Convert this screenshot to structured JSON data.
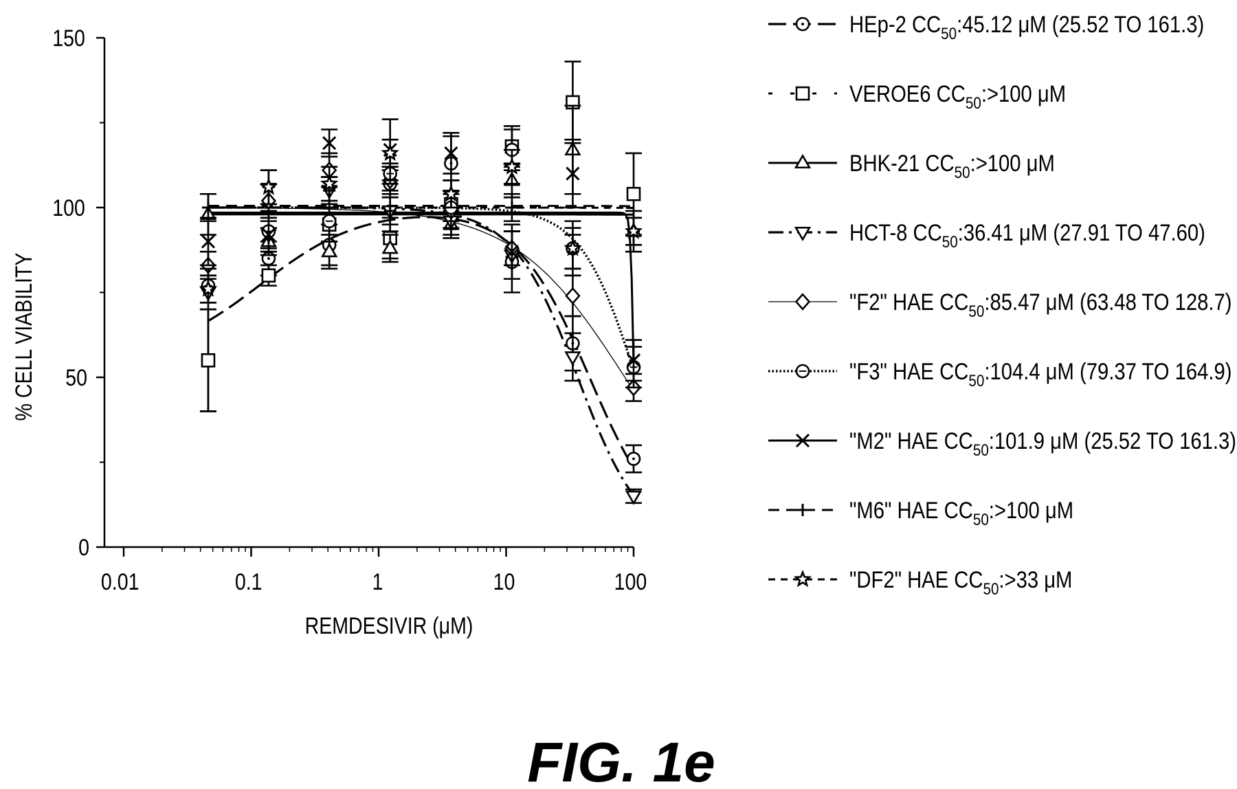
{
  "chart_data": {
    "type": "line",
    "xlabel": "REMDESIVIR (μM)",
    "ylabel": "% CELL VIABILITY",
    "x_scale": "log",
    "xlim": [
      0.01,
      100
    ],
    "ylim": [
      0,
      150
    ],
    "x_ticks": [
      0.01,
      0.1,
      1,
      10,
      100
    ],
    "x_tick_labels": [
      "0.01",
      "0.1",
      "1",
      "10",
      "100"
    ],
    "y_ticks": [
      0,
      50,
      100,
      150
    ],
    "y_tick_labels": [
      "0",
      "50",
      "100",
      "150"
    ],
    "grid": false,
    "legend_position": "right",
    "x": [
      0.046,
      0.137,
      0.41,
      1.23,
      3.7,
      11.1,
      33.3,
      100
    ],
    "series": [
      {
        "name": "HEp-2",
        "legend": {
          "prefix": "HEp-2 CC",
          "sub": "50",
          "suffix": ":45.12 μM (25.52 TO 161.3)"
        },
        "marker": "circle",
        "line_style": "long-dash",
        "values": [
          55,
          85,
          89,
          107,
          113,
          84,
          60,
          26
        ],
        "errors": [
          15,
          5,
          6,
          4,
          8,
          9,
          8,
          4
        ],
        "curve": {
          "top": 100,
          "bottom": 0,
          "ic50": 45.12,
          "hill": 1.5
        }
      },
      {
        "name": "VEROE6",
        "legend": {
          "prefix": "VEROE6 CC",
          "sub": "50",
          "suffix": ":>100 μM"
        },
        "marker": "square",
        "line_style": "sparse-dash",
        "values": [
          55,
          80,
          95,
          91,
          101,
          118,
          131,
          104
        ],
        "errors": [
          15,
          3,
          5,
          6,
          4,
          6,
          12,
          12
        ],
        "curve": {
          "top": 100,
          "bottom": 0,
          "ic50": 100000,
          "hill": 1
        }
      },
      {
        "name": "BHK-21",
        "legend": {
          "prefix": "BHK-21 CC",
          "sub": "50",
          "suffix": ":>100 μM"
        },
        "marker": "triangle",
        "line_style": "solid",
        "values": [
          98,
          90,
          87,
          88,
          95,
          108,
          117,
          93
        ],
        "errors": [
          6,
          4,
          5,
          4,
          4,
          5,
          13,
          6
        ],
        "curve": {
          "top": 98,
          "bottom": 0,
          "ic50": 100000,
          "hill": 1
        }
      },
      {
        "name": "HCT-8",
        "legend": {
          "prefix": "HCT-8 CC",
          "sub": "50",
          "suffix": ":36.41 μM (27.91 TO 47.60)"
        },
        "marker": "triangle-down",
        "line_style": "dash-dot",
        "values": [
          75,
          92,
          105,
          99,
          96,
          86,
          56,
          15
        ],
        "errors": [
          5,
          5,
          4,
          6,
          4,
          7,
          7,
          2
        ],
        "curve": {
          "top": 100,
          "bottom": 0,
          "ic50": 36.41,
          "hill": 1.7
        }
      },
      {
        "name": "F2 HAE",
        "legend": {
          "prefix": "\"F2\" HAE CC",
          "sub": "50",
          "suffix": ":85.47 μM (63.48 TO 128.7)"
        },
        "marker": "diamond",
        "line_style": "thin",
        "values": [
          83,
          102,
          111,
          108,
          99,
          88,
          74,
          47
        ],
        "errors": [
          4,
          5,
          5,
          4,
          5,
          5,
          6,
          4
        ],
        "curve": {
          "top": 100,
          "bottom": 0,
          "ic50": 85.47,
          "hill": 1
        }
      },
      {
        "name": "F3 HAE",
        "legend": {
          "prefix": "\"F3\" HAE CC",
          "sub": "50",
          "suffix": ":104.4 μM (79.37 TO 164.9)"
        },
        "marker": "circle-dot",
        "line_style": "dotted",
        "values": [
          77,
          93,
          96,
          110,
          100,
          117,
          88,
          53
        ],
        "errors": [
          5,
          6,
          6,
          3,
          4,
          6,
          8,
          6
        ],
        "curve": {
          "top": 100,
          "bottom": 0,
          "ic50": 104.4,
          "hill": 2
        }
      },
      {
        "name": "M2 HAE",
        "legend": {
          "prefix": "\"M2\" HAE CC",
          "sub": "50",
          "suffix": ":101.9 μM (25.52 TO 161.3)"
        },
        "marker": "x",
        "line_style": "solid",
        "values": [
          90,
          92,
          119,
          117,
          116,
          87,
          110,
          55
        ],
        "errors": [
          7,
          4,
          4,
          9,
          6,
          8,
          10,
          6
        ],
        "curve": {
          "top": 98.5,
          "bottom": 0,
          "ic50": 100.5,
          "hill": 35
        }
      },
      {
        "name": "M6 HAE",
        "legend": {
          "prefix": "\"M6\" HAE CC",
          "sub": "50",
          "suffix": ":>100 μM"
        },
        "marker": "plus",
        "line_style": "dashed",
        "values": [
          100,
          106,
          105,
          99,
          104,
          100,
          87,
          93
        ],
        "errors": [
          4,
          5,
          4,
          4,
          4,
          4,
          5,
          4
        ],
        "curve": {
          "top": 100.5,
          "bottom": 0,
          "ic50": 100000,
          "hill": 1
        }
      },
      {
        "name": "DF2 HAE",
        "legend": {
          "prefix": "\"DF2\" HAE CC",
          "sub": "50",
          "suffix": ":>33 μM"
        },
        "marker": "star",
        "line_style": "short-dash",
        "values": [
          76,
          106,
          107,
          116,
          104,
          112,
          88,
          93
        ],
        "errors": [
          4,
          5,
          5,
          4,
          4,
          5,
          6,
          4
        ],
        "curve": {
          "top": 100,
          "bottom": 0,
          "ic50": 100000,
          "hill": 1
        }
      }
    ]
  },
  "figure": {
    "label": "FIG. 1e"
  }
}
